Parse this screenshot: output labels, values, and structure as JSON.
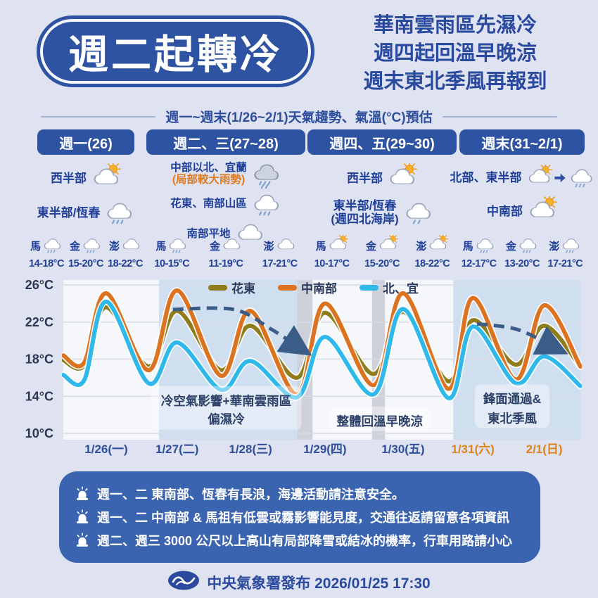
{
  "header": {
    "title": "週二起轉冷",
    "headline_lines": [
      "華南雲雨區先濕冷",
      "週四起回溫早晚涼",
      "週末東北季風再報到"
    ]
  },
  "subtitle": {
    "text": "週一~週末(1/26~2/1)天氣趨勢、氣溫(°C)預估"
  },
  "forecast": {
    "columns": [
      {
        "header": "週一(26)",
        "regions": [
          {
            "lines": [
              {
                "text": "西半部",
                "color": "blue"
              }
            ],
            "icons": [
              "sun-cloud"
            ]
          },
          {
            "lines": [
              {
                "text": "東半部/恆春",
                "color": "blue"
              }
            ],
            "icons": [
              "rain"
            ]
          }
        ],
        "islands": [
          {
            "name": "馬",
            "icon": "rain",
            "temp": "14-18°C"
          },
          {
            "name": "金",
            "icon": "rain",
            "temp": "15-20°C"
          },
          {
            "name": "澎",
            "icon": "cloud",
            "temp": "18-22°C"
          }
        ]
      },
      {
        "header": "週二、三(27~28)",
        "regions": [
          {
            "lines": [
              {
                "text": "中部以北、宜蘭",
                "color": "blue"
              },
              {
                "text": "(局部較大雨勢)",
                "color": "orange"
              }
            ],
            "icons": [
              "heavy-rain"
            ]
          },
          {
            "lines": [
              {
                "text": "花東、南部山區",
                "color": "blue"
              }
            ],
            "icons": [
              "rain"
            ]
          },
          {
            "lines": [
              {
                "text": "南部平地",
                "color": "blue"
              }
            ],
            "icons": [
              "cloud"
            ]
          }
        ],
        "islands": [
          {
            "name": "馬",
            "icon": "rain",
            "temp": "10-15°C"
          },
          {
            "name": "金",
            "icon": "cloud",
            "temp": "11-19°C"
          },
          {
            "name": "澎",
            "icon": "cloud",
            "temp": "17-21°C"
          }
        ]
      },
      {
        "header": "週四、五(29~30)",
        "regions": [
          {
            "lines": [
              {
                "text": "西半部",
                "color": "blue"
              }
            ],
            "icons": [
              "sun-cloud"
            ]
          },
          {
            "lines": [
              {
                "text": "東半部/恆春",
                "color": "blue"
              },
              {
                "text": "(週四北海岸)",
                "color": "blue"
              }
            ],
            "icons": [
              "light-rain"
            ]
          }
        ],
        "islands": [
          {
            "name": "馬",
            "icon": "sun-cloud",
            "temp": "10-17°C"
          },
          {
            "name": "金",
            "icon": "sun-cloud",
            "temp": "15-20°C"
          },
          {
            "name": "澎",
            "icon": "sun-cloud",
            "temp": "18-22°C"
          }
        ]
      },
      {
        "header": "週末(31~2/1)",
        "regions": [
          {
            "lines": [
              {
                "text": "北部、東半部",
                "color": "blue"
              }
            ],
            "icons": [
              "sun-cloud",
              "arrow",
              "rain"
            ]
          },
          {
            "lines": [
              {
                "text": "中南部",
                "color": "blue"
              }
            ],
            "icons": [
              "sun-cloud"
            ]
          }
        ],
        "islands": [
          {
            "name": "馬",
            "icon": "rain",
            "temp": "12-17°C"
          },
          {
            "name": "金",
            "icon": "rain",
            "temp": "13-20°C"
          },
          {
            "name": "澎",
            "icon": "rain",
            "temp": "17-21°C"
          }
        ]
      }
    ]
  },
  "chart_data": {
    "type": "line",
    "title": "週一~週末(1/26~2/1)氣溫(°C)預估",
    "ylabel": "°C",
    "ylim": [
      10,
      26
    ],
    "yticks": [
      26,
      22,
      18,
      14,
      10
    ],
    "ytick_labels": [
      "26°C",
      "22°C",
      "18°C",
      "14°C",
      "10°C"
    ],
    "grid": true,
    "legend_position": "top-center",
    "x_labels": [
      {
        "text": "1/26(一)",
        "x": 0.083,
        "color": "#2d4f9e"
      },
      {
        "text": "1/27(二)",
        "x": 0.22,
        "color": "#2d4f9e"
      },
      {
        "text": "1/28(三)",
        "x": 0.362,
        "color": "#2d4f9e"
      },
      {
        "text": "1/29(四)",
        "x": 0.506,
        "color": "#2d4f9e"
      },
      {
        "text": "1/30(五)",
        "x": 0.657,
        "color": "#2d4f9e"
      },
      {
        "text": "1/31(六)",
        "x": 0.792,
        "color": "#e0821c"
      },
      {
        "text": "2/1(日)",
        "x": 0.93,
        "color": "#e0821c"
      }
    ],
    "series": [
      {
        "name": "花東",
        "color": "#8f7d1c",
        "points": [
          [
            0.0,
            17.9
          ],
          [
            0.04,
            17.3
          ],
          [
            0.083,
            23.6
          ],
          [
            0.165,
            17.2
          ],
          [
            0.22,
            23.2
          ],
          [
            0.305,
            16.8
          ],
          [
            0.362,
            21.6
          ],
          [
            0.452,
            16.0
          ],
          [
            0.506,
            23.0
          ],
          [
            0.6,
            16.4
          ],
          [
            0.657,
            23.1
          ],
          [
            0.745,
            15.6
          ],
          [
            0.792,
            22.2
          ],
          [
            0.875,
            17.4
          ],
          [
            0.93,
            21.6
          ],
          [
            1.0,
            17.2
          ]
        ]
      },
      {
        "name": "中南部",
        "color": "#dc7321",
        "points": [
          [
            0.0,
            18.4
          ],
          [
            0.04,
            17.6
          ],
          [
            0.083,
            25.1
          ],
          [
            0.165,
            16.8
          ],
          [
            0.22,
            25.4
          ],
          [
            0.305,
            16.2
          ],
          [
            0.362,
            23.2
          ],
          [
            0.452,
            14.2
          ],
          [
            0.506,
            24.0
          ],
          [
            0.6,
            15.2
          ],
          [
            0.657,
            25.1
          ],
          [
            0.745,
            14.8
          ],
          [
            0.792,
            24.6
          ],
          [
            0.875,
            15.8
          ],
          [
            0.93,
            23.8
          ],
          [
            1.0,
            17.2
          ]
        ]
      },
      {
        "name": "北、宜",
        "color": "#2fb9ea",
        "points": [
          [
            0.0,
            16.3
          ],
          [
            0.04,
            15.7
          ],
          [
            0.083,
            24.2
          ],
          [
            0.165,
            15.4
          ],
          [
            0.22,
            19.8
          ],
          [
            0.305,
            14.7
          ],
          [
            0.362,
            17.8
          ],
          [
            0.452,
            13.9
          ],
          [
            0.506,
            20.4
          ],
          [
            0.6,
            14.2
          ],
          [
            0.657,
            23.4
          ],
          [
            0.745,
            13.8
          ],
          [
            0.792,
            21.5
          ],
          [
            0.875,
            15.4
          ],
          [
            0.93,
            18.3
          ],
          [
            1.0,
            15.1
          ]
        ]
      }
    ],
    "bands": [
      {
        "x0": 0.185,
        "x1": 0.452,
        "color": "#c9dbed"
      },
      {
        "x0": 0.452,
        "x1": 0.482,
        "color": "#c7cad3"
      },
      {
        "x0": 0.597,
        "x1": 0.622,
        "color": "#c7cad3"
      },
      {
        "x0": 0.754,
        "x1": 1.0,
        "color": "#c9dbed"
      }
    ],
    "annotations": [
      {
        "lines": [
          "冷空氣影響+華南雲雨區",
          "偏濕冷"
        ],
        "x": 0.315,
        "temps": [
          13.5,
          11.5
        ]
      },
      {
        "lines": [
          "整體回溫早晚涼"
        ],
        "x": 0.612,
        "temps": [
          11.3
        ]
      },
      {
        "lines": [
          "鋒面通過&",
          "東北季風"
        ],
        "x": 0.868,
        "temps": [
          13.7,
          11.6
        ]
      }
    ],
    "arrows": [
      {
        "points": [
          [
            0.212,
            23.35
          ],
          [
            0.33,
            23.35
          ],
          [
            0.4,
            21.3
          ],
          [
            0.458,
            19.2
          ]
        ]
      },
      {
        "points": [
          [
            0.8,
            21.8
          ],
          [
            0.878,
            21.2
          ],
          [
            0.952,
            19.2
          ]
        ]
      }
    ]
  },
  "notices": {
    "items": [
      "週一、二 東南部、恆春有長浪，海邊活動請注意安全。",
      "週一、二 中南部 & 馬祖有低雲或霧影響能見度，交通往返請留意各項資訊",
      "週二、週三 3000 公尺以上高山有局部降雪或結冰的機率，行車用路請小心"
    ]
  },
  "footer": {
    "text": "中央氣象署發布 2026/01/25 17:30"
  },
  "colors": {
    "background": "#dfe2f1",
    "primary_blue": "#2e53a3",
    "text_blue": "#1f3f98",
    "accent_orange": "#e07a1f",
    "weekend_orange": "#e0821c",
    "notice_bg": "#3a63b0",
    "band_blue": "#c9dbed",
    "band_gray": "#c7cad3",
    "arrow_navy": "#3b5c86",
    "line_hua_dong": "#8f7d1c",
    "line_central_south": "#dc7321",
    "line_north_yi": "#2fb9ea"
  }
}
